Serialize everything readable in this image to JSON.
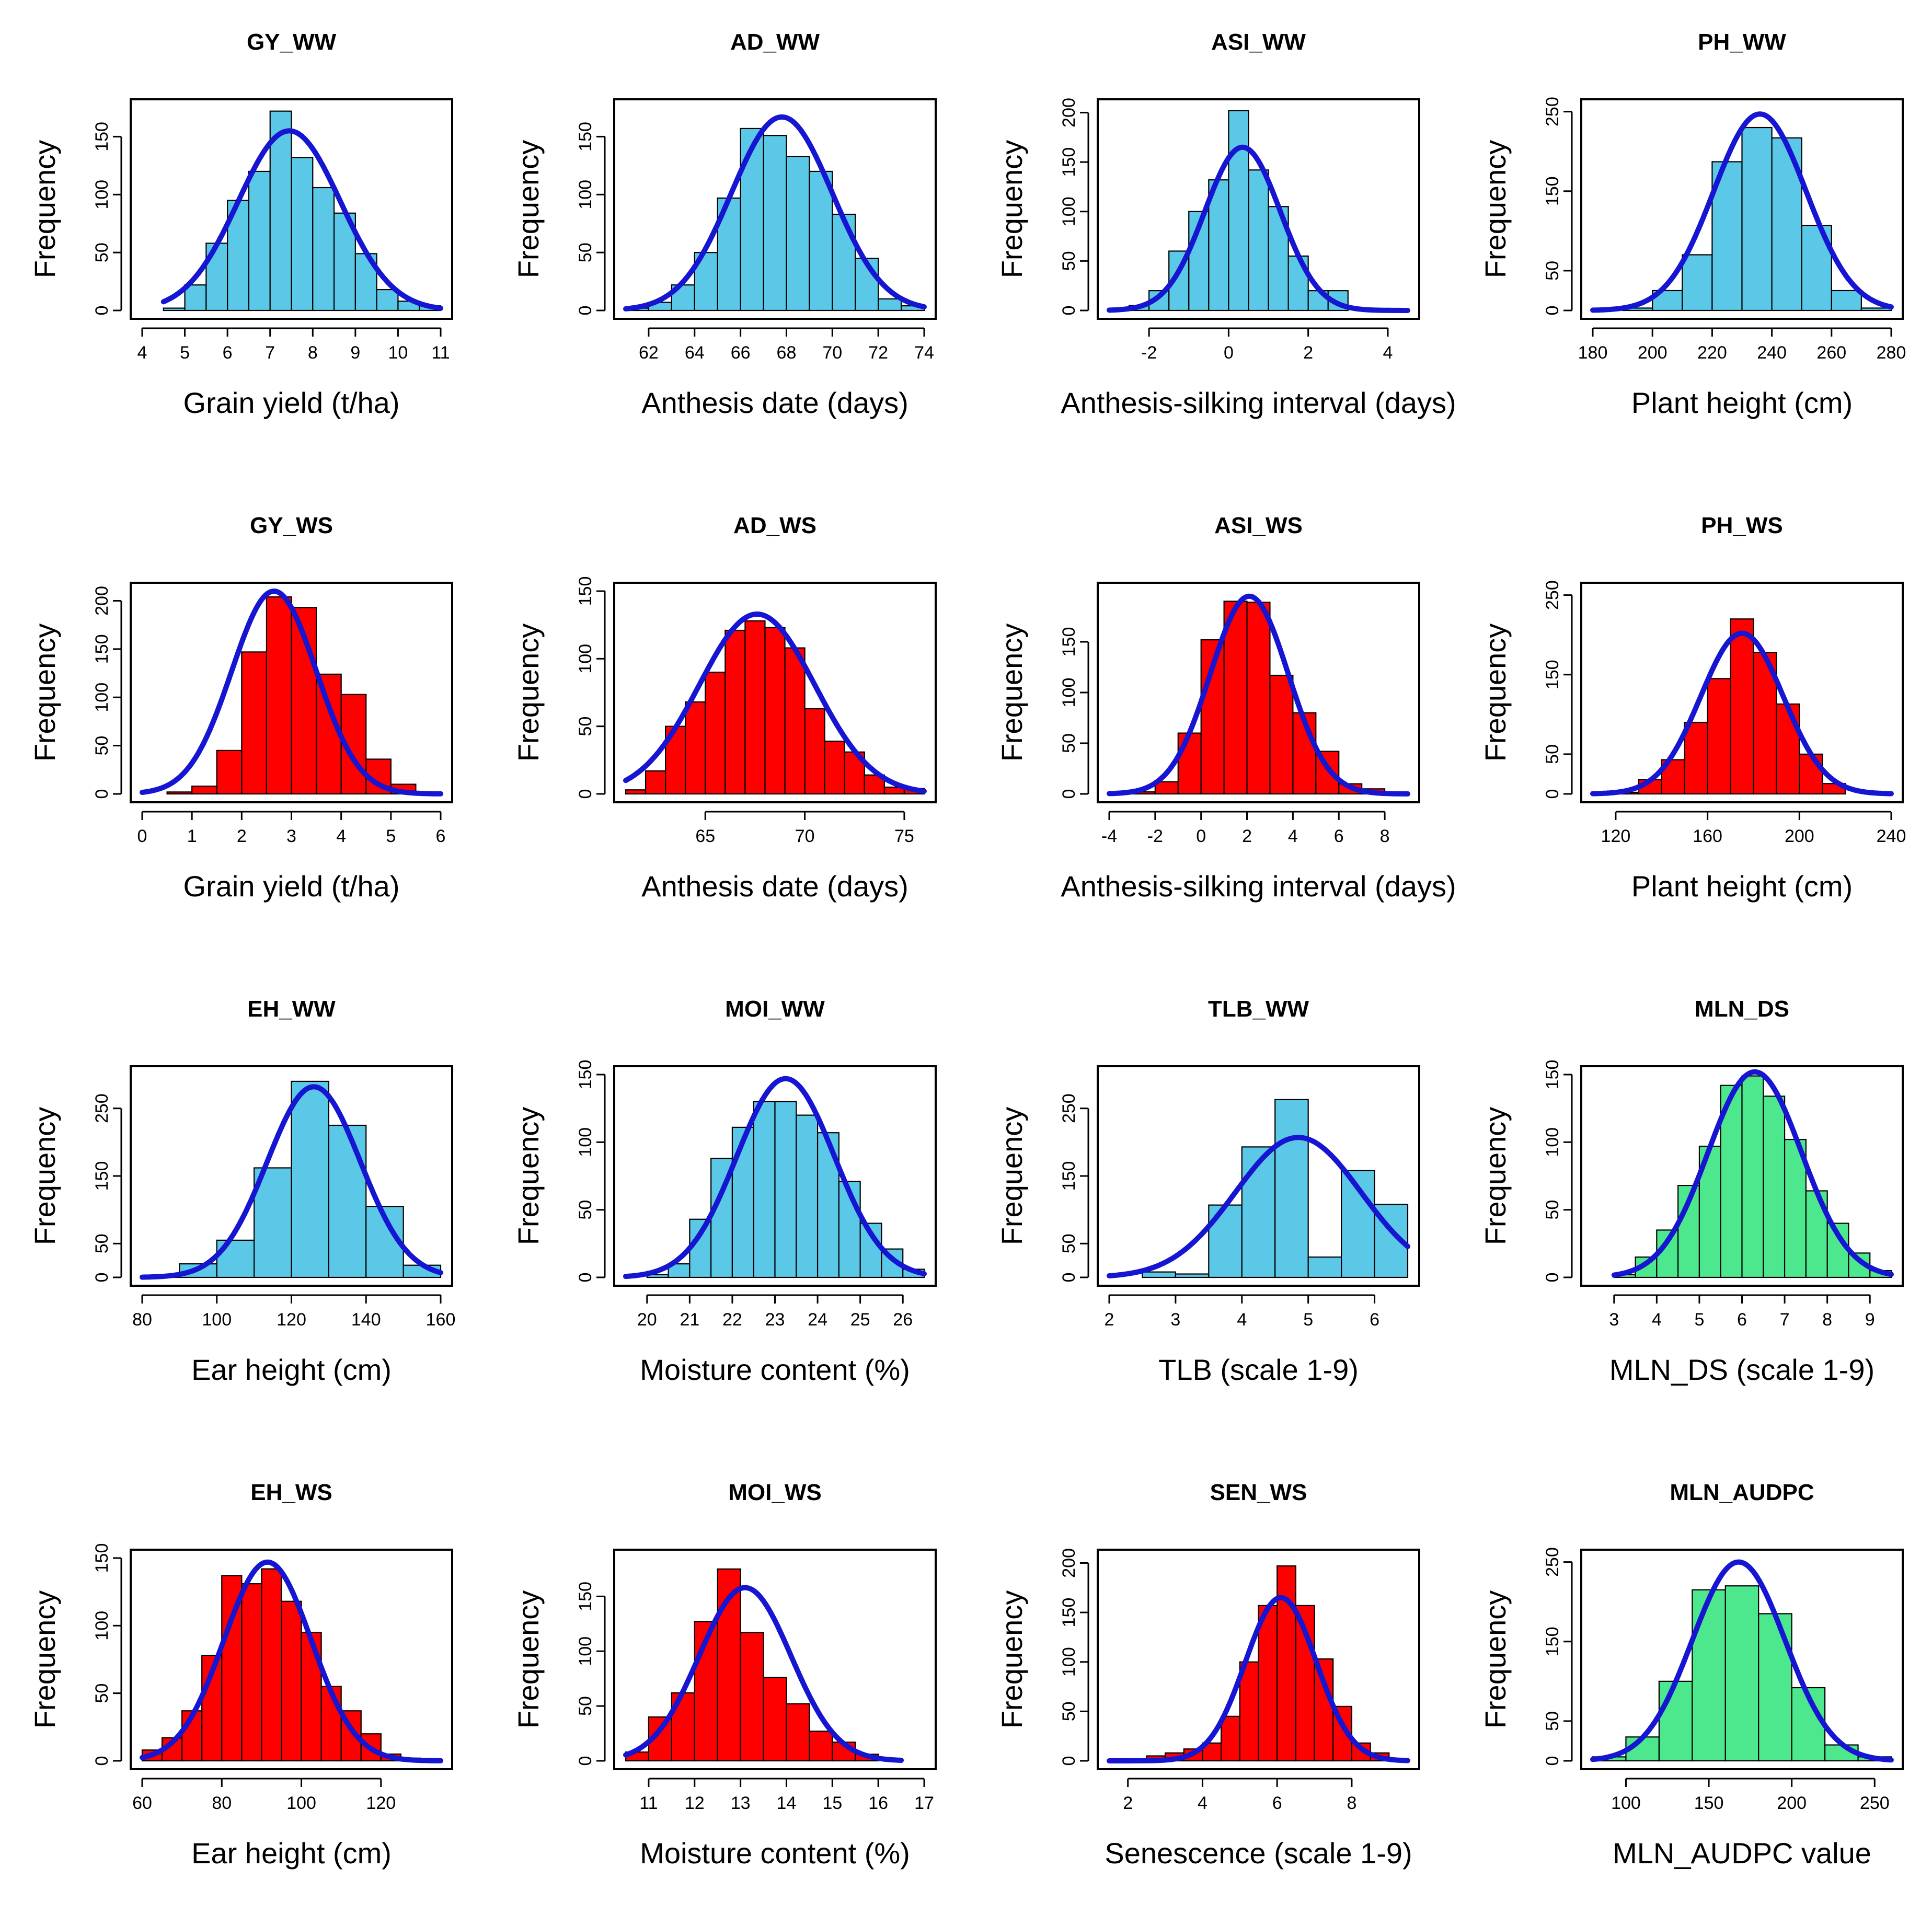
{
  "figure": {
    "description_id": "trait-histograms"
  },
  "colors": {
    "ww": "#5bc8e8",
    "ws": "#ff0000",
    "mln": "#4de88e",
    "curve": "#1515d2",
    "edge": "#000000"
  },
  "chart_data": [
    {
      "type": "bar",
      "title": "GY_WW",
      "xlabel": "Grain yield (t/ha)",
      "ylabel": "Frequency",
      "color": "ww",
      "xlim": [
        4,
        11
      ],
      "ylim": [
        0,
        175
      ],
      "xticks": [
        4,
        5,
        6,
        7,
        8,
        9,
        10,
        11
      ],
      "yticks": [
        0,
        50,
        100,
        150
      ],
      "bin_start": 4.5,
      "bin_width": 0.5,
      "values": [
        2,
        22,
        58,
        95,
        120,
        172,
        132,
        106,
        84,
        49,
        18,
        8,
        4
      ],
      "fit": {
        "mean": 7.45,
        "sd": 1.2,
        "peak": 155
      }
    },
    {
      "type": "bar",
      "title": "AD_WW",
      "xlabel": "Anthesis date (days)",
      "ylabel": "Frequency",
      "color": "ww",
      "xlim": [
        61,
        74
      ],
      "ylim": [
        0,
        175
      ],
      "xticks": [
        62,
        64,
        66,
        68,
        70,
        72,
        74
      ],
      "yticks": [
        0,
        50,
        100,
        150
      ],
      "bin_start": 61,
      "bin_width": 1,
      "values": [
        2,
        7,
        22,
        50,
        97,
        157,
        151,
        133,
        120,
        83,
        45,
        10,
        4
      ],
      "fit": {
        "mean": 67.8,
        "sd": 2.2,
        "peak": 167
      }
    },
    {
      "type": "bar",
      "title": "ASI_WW",
      "xlabel": "Anthesis-silking interval (days)",
      "ylabel": "Frequency",
      "color": "ww",
      "xlim": [
        -3,
        4.5
      ],
      "ylim": [
        0,
        205
      ],
      "xticks": [
        -2,
        0,
        2,
        4
      ],
      "yticks": [
        0,
        50,
        100,
        150,
        200
      ],
      "bin_start": -3,
      "bin_width": 0.5,
      "values": [
        2,
        5,
        20,
        60,
        100,
        132,
        202,
        142,
        105,
        55,
        20,
        20,
        0,
        0,
        0
      ],
      "fit": {
        "mean": 0.35,
        "sd": 0.95,
        "peak": 165
      }
    },
    {
      "type": "bar",
      "title": "PH_WW",
      "xlabel": "Plant height (cm)",
      "ylabel": "Frequency",
      "color": "ww",
      "xlim": [
        180,
        280
      ],
      "ylim": [
        0,
        255
      ],
      "xticks": [
        180,
        200,
        220,
        240,
        260,
        280
      ],
      "yticks": [
        0,
        50,
        150,
        250
      ],
      "bin_start": 180,
      "bin_width": 10,
      "values": [
        0,
        3,
        25,
        70,
        187,
        230,
        217,
        107,
        25,
        3
      ],
      "fit": {
        "mean": 236,
        "sd": 15.5,
        "peak": 247
      }
    },
    {
      "type": "bar",
      "title": "GY_WS",
      "xlabel": "Grain yield (t/ha)",
      "ylabel": "Frequency",
      "color": "ws",
      "xlim": [
        0,
        6
      ],
      "ylim": [
        0,
        210
      ],
      "xticks": [
        0,
        1,
        2,
        3,
        4,
        5,
        6
      ],
      "yticks": [
        0,
        50,
        100,
        150,
        200
      ],
      "bin_start": 0,
      "bin_width": 0.5,
      "values": [
        0,
        2,
        8,
        45,
        147,
        204,
        193,
        124,
        103,
        36,
        10,
        0
      ],
      "fit": {
        "mean": 2.65,
        "sd": 0.85,
        "peak": 210
      }
    },
    {
      "type": "bar",
      "title": "AD_WS",
      "xlabel": "Anthesis date (days)",
      "ylabel": "Frequency",
      "color": "ws",
      "xlim": [
        61,
        76
      ],
      "ylim": [
        0,
        150
      ],
      "xticks": [
        65,
        70,
        75
      ],
      "yticks": [
        0,
        50,
        100,
        150
      ],
      "bin_start": 61,
      "bin_width": 1,
      "values": [
        3,
        17,
        50,
        68,
        90,
        121,
        128,
        123,
        108,
        63,
        39,
        31,
        14,
        5,
        4
      ],
      "fit": {
        "mean": 67.6,
        "sd": 2.9,
        "peak": 133
      }
    },
    {
      "type": "bar",
      "title": "ASI_WS",
      "xlabel": "Anthesis-silking interval (days)",
      "ylabel": "Frequency",
      "color": "ws",
      "xlim": [
        -4,
        9
      ],
      "ylim": [
        0,
        200
      ],
      "xticks": [
        -4,
        -2,
        0,
        2,
        4,
        6,
        8
      ],
      "yticks": [
        0,
        50,
        100,
        150
      ],
      "bin_start": -4,
      "bin_width": 1,
      "values": [
        0,
        2,
        12,
        60,
        152,
        190,
        189,
        117,
        80,
        42,
        10,
        5,
        0
      ],
      "fit": {
        "mean": 2.1,
        "sd": 1.7,
        "peak": 195
      }
    },
    {
      "type": "bar",
      "title": "PH_WS",
      "xlabel": "Plant height (cm)",
      "ylabel": "Frequency",
      "color": "ws",
      "xlim": [
        110,
        240
      ],
      "ylim": [
        0,
        255
      ],
      "xticks": [
        120,
        160,
        200,
        240
      ],
      "yticks": [
        0,
        50,
        150,
        250
      ],
      "bin_start": 110,
      "bin_width": 10,
      "values": [
        0,
        2,
        18,
        43,
        90,
        145,
        220,
        178,
        113,
        50,
        13,
        0,
        0
      ],
      "fit": {
        "mean": 175,
        "sd": 18,
        "peak": 202
      }
    },
    {
      "type": "bar",
      "title": "EH_WW",
      "xlabel": "Ear height (cm)",
      "ylabel": "Frequency",
      "color": "ww",
      "xlim": [
        80,
        160
      ],
      "ylim": [
        0,
        300
      ],
      "xticks": [
        80,
        100,
        120,
        140,
        160
      ],
      "yticks": [
        0,
        50,
        150,
        250
      ],
      "bin_start": 80,
      "bin_width": 10,
      "values": [
        2,
        20,
        55,
        162,
        290,
        225,
        105,
        18
      ],
      "fit": {
        "mean": 126,
        "sd": 12.5,
        "peak": 282
      }
    },
    {
      "type": "bar",
      "title": "MOI_WW",
      "xlabel": "Moisture content (%)",
      "ylabel": "Frequency",
      "color": "ww",
      "xlim": [
        19.5,
        26.5
      ],
      "ylim": [
        0,
        150
      ],
      "xticks": [
        20,
        21,
        22,
        23,
        24,
        25,
        26
      ],
      "yticks": [
        0,
        50,
        100,
        150
      ],
      "bin_start": 19.5,
      "bin_width": 0.5,
      "values": [
        0,
        2,
        10,
        43,
        88,
        111,
        130,
        130,
        120,
        107,
        71,
        40,
        21,
        6
      ],
      "fit": {
        "mean": 23.25,
        "sd": 1.15,
        "peak": 147
      }
    },
    {
      "type": "bar",
      "title": "TLB_WW",
      "xlabel": "TLB (scale 1-9)",
      "ylabel": "Frequency",
      "color": "ww",
      "xlim": [
        2,
        6.5
      ],
      "ylim": [
        0,
        300
      ],
      "xticks": [
        2,
        3,
        4,
        5,
        6
      ],
      "yticks": [
        0,
        50,
        150,
        250
      ],
      "bin_start": 2,
      "bin_width": 0.5,
      "values": [
        0,
        8,
        5,
        107,
        193,
        263,
        30,
        158,
        108
      ],
      "fit": {
        "mean": 4.85,
        "sd": 0.95,
        "peak": 207
      }
    },
    {
      "type": "bar",
      "title": "MLN_DS",
      "xlabel": "MLN_DS (scale 1-9)",
      "ylabel": "Frequency",
      "color": "mln",
      "xlim": [
        2.5,
        9.5
      ],
      "ylim": [
        0,
        150
      ],
      "xticks": [
        3,
        4,
        5,
        6,
        7,
        8,
        9
      ],
      "yticks": [
        0,
        50,
        100,
        150
      ],
      "bin_start": 3,
      "bin_width": 0.5,
      "values": [
        2,
        15,
        35,
        68,
        97,
        142,
        149,
        134,
        102,
        64,
        40,
        18,
        5
      ],
      "fit": {
        "mean": 6.3,
        "sd": 1.1,
        "peak": 152
      }
    },
    {
      "type": "bar",
      "title": "EH_WS",
      "xlabel": "Ear height (cm)",
      "ylabel": "Frequency",
      "color": "ws",
      "xlim": [
        60,
        135
      ],
      "ylim": [
        0,
        150
      ],
      "xticks": [
        60,
        80,
        100,
        120
      ],
      "yticks": [
        0,
        50,
        100,
        150
      ],
      "bin_start": 60,
      "bin_width": 5,
      "values": [
        8,
        17,
        37,
        78,
        137,
        131,
        142,
        118,
        95,
        55,
        37,
        20,
        5,
        2,
        0
      ],
      "fit": {
        "mean": 91.5,
        "sd": 11,
        "peak": 147
      }
    },
    {
      "type": "bar",
      "title": "MOI_WS",
      "xlabel": "Moisture content (%)",
      "ylabel": "Frequency",
      "color": "ws",
      "xlim": [
        10.5,
        17
      ],
      "ylim": [
        0,
        185
      ],
      "xticks": [
        11,
        12,
        13,
        14,
        15,
        16,
        17
      ],
      "yticks": [
        0,
        50,
        100,
        150
      ],
      "bin_start": 10.5,
      "bin_width": 0.5,
      "values": [
        8,
        40,
        62,
        127,
        175,
        117,
        76,
        52,
        27,
        17,
        6,
        0
      ],
      "fit": {
        "mean": 13.1,
        "sd": 1.0,
        "peak": 158
      }
    },
    {
      "type": "bar",
      "title": "SEN_WS",
      "xlabel": "Senescence (scale 1-9)",
      "ylabel": "Frequency",
      "color": "ws",
      "xlim": [
        1.5,
        9.5
      ],
      "ylim": [
        0,
        205
      ],
      "xticks": [
        2,
        4,
        6,
        8
      ],
      "yticks": [
        0,
        50,
        100,
        150,
        200
      ],
      "bin_start": 1.5,
      "bin_width": 0.5,
      "values": [
        0,
        2,
        5,
        8,
        12,
        18,
        45,
        100,
        157,
        197,
        157,
        103,
        55,
        18,
        8,
        2
      ],
      "fit": {
        "mean": 6.1,
        "sd": 0.95,
        "peak": 165
      }
    },
    {
      "type": "bar",
      "title": "MLN_AUDPC",
      "xlabel": "MLN_AUDPC value",
      "ylabel": "Frequency",
      "color": "mln",
      "xlim": [
        80,
        260
      ],
      "ylim": [
        0,
        255
      ],
      "xticks": [
        100,
        150,
        200,
        250
      ],
      "yticks": [
        0,
        50,
        150,
        250
      ],
      "bin_start": 80,
      "bin_width": 20,
      "values": [
        5,
        30,
        100,
        215,
        220,
        185,
        92,
        20,
        5
      ],
      "fit": {
        "mean": 168,
        "sd": 28,
        "peak": 250
      }
    }
  ]
}
